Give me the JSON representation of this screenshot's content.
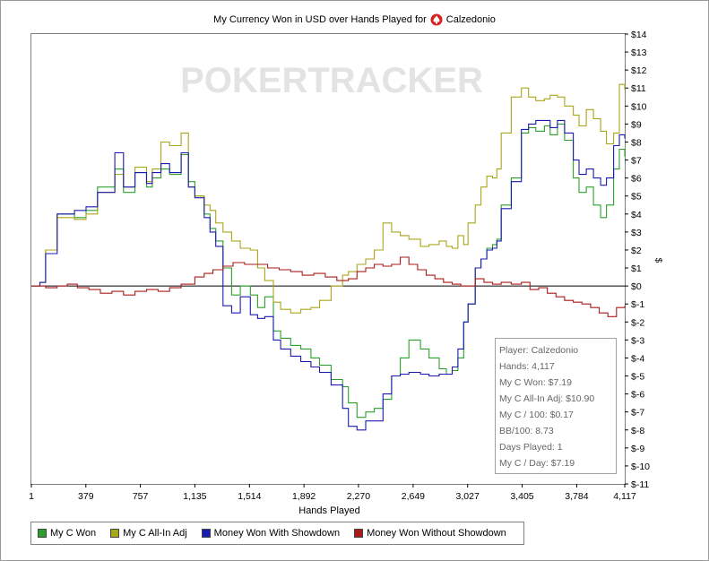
{
  "window": {
    "title_prefix": "My Currency Won in USD over Hands Played for",
    "player_name": "Calzedonio",
    "title_icon": "pokerstars-spade-icon",
    "watermark": "POKERTRACKER"
  },
  "chart_data": {
    "type": "line",
    "title": "My Currency Won in USD over Hands Played for Calzedonio",
    "xlabel": "Hands Played",
    "ylabel": "$",
    "xlim": [
      1,
      4117
    ],
    "ylim": [
      -11,
      14
    ],
    "x_ticks": [
      "1",
      "379",
      "757",
      "1,135",
      "1,514",
      "1,892",
      "2,270",
      "2,649",
      "3,027",
      "3,405",
      "3,784",
      "4,117"
    ],
    "x_tick_values": [
      1,
      379,
      757,
      1135,
      1514,
      1892,
      2270,
      2649,
      3027,
      3405,
      3784,
      4117
    ],
    "y_tick_values": [
      -11,
      -10,
      -9,
      -8,
      -7,
      -6,
      -5,
      -4,
      -3,
      -2,
      -1,
      0,
      1,
      2,
      3,
      4,
      5,
      6,
      7,
      8,
      9,
      10,
      11,
      12,
      13,
      14
    ],
    "y_ticks": [
      "$-11",
      "$-10",
      "$-9",
      "$-8",
      "$-7",
      "$-6",
      "$-5",
      "$-4",
      "$-3",
      "$-2",
      "$-1",
      "$0",
      "$1",
      "$2",
      "$3",
      "$4",
      "$5",
      "$6",
      "$7",
      "$8",
      "$9",
      "$10",
      "$11",
      "$12",
      "$13",
      "$14"
    ],
    "grid": false,
    "legend_position": "bottom",
    "series": [
      {
        "name": "My C Won",
        "color": "#2ca02c",
        "x": [
          1,
          60,
          100,
          180,
          300,
          380,
          460,
          580,
          640,
          720,
          800,
          840,
          900,
          960,
          1040,
          1090,
          1135,
          1200,
          1240,
          1280,
          1330,
          1390,
          1450,
          1520,
          1570,
          1620,
          1680,
          1730,
          1800,
          1870,
          1940,
          2000,
          2080,
          2160,
          2200,
          2260,
          2320,
          2380,
          2440,
          2500,
          2560,
          2620,
          2700,
          2760,
          2830,
          2880,
          2920,
          2960,
          3000,
          3030,
          3080,
          3120,
          3160,
          3200,
          3230,
          3260,
          3330,
          3400,
          3450,
          3500,
          3560,
          3600,
          3650,
          3700,
          3760,
          3800,
          3850,
          3900,
          3950,
          3990,
          4040,
          4080,
          4117
        ],
        "y": [
          0,
          0.2,
          2,
          4,
          3.8,
          4.2,
          5.5,
          6.5,
          5.2,
          6.3,
          5.5,
          6,
          6.5,
          6.2,
          7.3,
          5.8,
          5,
          4,
          3.2,
          2.5,
          1,
          -0.5,
          0,
          -0.5,
          -1.2,
          -0.6,
          -2.5,
          -2.9,
          -3.3,
          -3.5,
          -4,
          -4.4,
          -5.2,
          -5.6,
          -6.5,
          -7.3,
          -7,
          -6.8,
          -6.3,
          -5,
          -4,
          -3,
          -3.5,
          -4,
          -4.6,
          -4.9,
          -4.7,
          -4,
          -2,
          -1,
          1,
          1.5,
          2.1,
          2.3,
          2.6,
          4.5,
          6,
          8.5,
          8.8,
          8.6,
          8.9,
          8.4,
          9,
          8.1,
          6,
          5.2,
          5.5,
          4.5,
          3.8,
          4.5,
          6.5,
          7.6,
          7.19
        ]
      },
      {
        "name": "My C All-In Adj",
        "color": "#aaa61a",
        "x": [
          1,
          60,
          100,
          180,
          300,
          380,
          460,
          580,
          640,
          720,
          800,
          840,
          900,
          960,
          1040,
          1090,
          1135,
          1200,
          1240,
          1280,
          1330,
          1390,
          1450,
          1520,
          1570,
          1620,
          1680,
          1730,
          1800,
          1870,
          1940,
          2000,
          2080,
          2160,
          2200,
          2260,
          2320,
          2380,
          2440,
          2500,
          2560,
          2620,
          2700,
          2760,
          2830,
          2880,
          2920,
          2960,
          3000,
          3030,
          3080,
          3120,
          3160,
          3200,
          3230,
          3260,
          3330,
          3400,
          3450,
          3500,
          3560,
          3600,
          3650,
          3700,
          3760,
          3800,
          3850,
          3900,
          3950,
          3990,
          4040,
          4080,
          4117
        ],
        "y": [
          0,
          0.2,
          2,
          3.8,
          3.7,
          4,
          5.2,
          6.2,
          5.5,
          6.6,
          5.8,
          6.5,
          8,
          7.8,
          8.5,
          5.5,
          5,
          4.5,
          4.2,
          3.5,
          3,
          2.5,
          2.1,
          2,
          1,
          0.3,
          -0.9,
          -1.3,
          -1.5,
          -1.3,
          -1.2,
          -0.8,
          0,
          0.6,
          0.8,
          1.2,
          1.5,
          2,
          3.5,
          3,
          2.8,
          2.6,
          2.2,
          2.3,
          2.5,
          2.2,
          2.1,
          2.8,
          2.3,
          3.5,
          4.5,
          5.5,
          6.1,
          6,
          6.5,
          8.5,
          10.5,
          11,
          10.5,
          10.3,
          10.4,
          10.6,
          10.5,
          10,
          9.5,
          8.9,
          9.8,
          9.3,
          8.6,
          7.9,
          8.5,
          11.2,
          10.9
        ]
      },
      {
        "name": "Money Won With Showdown",
        "color": "#1b1bb2",
        "x": [
          1,
          60,
          100,
          180,
          300,
          380,
          460,
          580,
          640,
          720,
          800,
          840,
          900,
          960,
          1040,
          1090,
          1135,
          1200,
          1240,
          1280,
          1330,
          1390,
          1450,
          1520,
          1570,
          1620,
          1680,
          1730,
          1800,
          1870,
          1940,
          2000,
          2080,
          2160,
          2200,
          2260,
          2320,
          2380,
          2440,
          2500,
          2560,
          2620,
          2700,
          2760,
          2830,
          2880,
          2920,
          2960,
          3000,
          3030,
          3080,
          3120,
          3160,
          3200,
          3230,
          3260,
          3330,
          3400,
          3450,
          3500,
          3560,
          3600,
          3650,
          3700,
          3760,
          3800,
          3850,
          3900,
          3950,
          3990,
          4040,
          4080,
          4117
        ],
        "y": [
          0,
          0.2,
          1.8,
          4,
          4.2,
          4.4,
          5.2,
          7.4,
          5.5,
          6.3,
          5.7,
          6.3,
          6.8,
          6.3,
          7.4,
          5.5,
          4.9,
          3.8,
          3,
          2.2,
          -1.1,
          -1.5,
          -0.6,
          -1.6,
          -1.8,
          -1.7,
          -3,
          -3.5,
          -3.9,
          -4.2,
          -4.5,
          -4.8,
          -5.5,
          -6.8,
          -7.8,
          -8,
          -7.5,
          -7.5,
          -6,
          -5,
          -4.9,
          -4.8,
          -4.9,
          -5,
          -4.9,
          -4.9,
          -4.5,
          -3.5,
          -2,
          -1,
          1,
          1.5,
          2,
          2.1,
          2.5,
          4.3,
          5.8,
          8.7,
          9,
          9.2,
          9.2,
          8.8,
          9.2,
          8.5,
          7,
          6.2,
          6.5,
          6,
          5.6,
          6,
          7.8,
          8.4,
          8.2
        ]
      },
      {
        "name": "Money Won Without Showdown",
        "color": "#aa1a1a",
        "x": [
          1,
          60,
          100,
          180,
          250,
          320,
          400,
          480,
          560,
          640,
          720,
          800,
          880,
          960,
          1040,
          1135,
          1200,
          1260,
          1330,
          1400,
          1480,
          1560,
          1640,
          1720,
          1800,
          1880,
          1960,
          2040,
          2120,
          2200,
          2260,
          2320,
          2380,
          2440,
          2500,
          2560,
          2620,
          2680,
          2740,
          2800,
          2860,
          2920,
          2980,
          3027,
          3080,
          3140,
          3200,
          3260,
          3330,
          3400,
          3460,
          3520,
          3580,
          3640,
          3700,
          3760,
          3820,
          3880,
          3940,
          4000,
          4060,
          4117
        ],
        "y": [
          0,
          0,
          -0.1,
          0,
          0.1,
          -0.1,
          -0.2,
          -0.4,
          -0.3,
          -0.5,
          -0.3,
          -0.2,
          -0.3,
          -0.1,
          0.1,
          0.5,
          0.7,
          0.9,
          1.1,
          1.3,
          1.2,
          1.2,
          1,
          0.9,
          0.8,
          0.6,
          0.7,
          0.5,
          0.3,
          0.4,
          0.8,
          1,
          1.2,
          1.1,
          1.2,
          1.6,
          1.2,
          0.9,
          0.6,
          0.4,
          0.2,
          0.1,
          0,
          0,
          0.4,
          0.2,
          0.1,
          0.2,
          0.1,
          0.2,
          -0.2,
          -0.1,
          -0.4,
          -0.6,
          -0.8,
          -0.9,
          -1,
          -1.2,
          -1.5,
          -1.7,
          -1.2,
          -1.1
        ]
      }
    ]
  },
  "stats": {
    "player": "Player: Calzedonio",
    "hands": "Hands: 4,117",
    "won": "My C Won: $7.19",
    "allin": "My C All-In Adj: $10.90",
    "per100": "My C / 100: $0.17",
    "bb100": "BB/100: 8.73",
    "days": "Days Played: 1",
    "perday": "My C / Day: $7.19"
  },
  "legend": {
    "items": [
      {
        "label": "My C Won",
        "color": "#2ca02c"
      },
      {
        "label": "My C All-In Adj",
        "color": "#aaa61a"
      },
      {
        "label": "Money Won With Showdown",
        "color": "#1b1bb2"
      },
      {
        "label": "Money Won Without Showdown",
        "color": "#aa1a1a"
      }
    ]
  }
}
